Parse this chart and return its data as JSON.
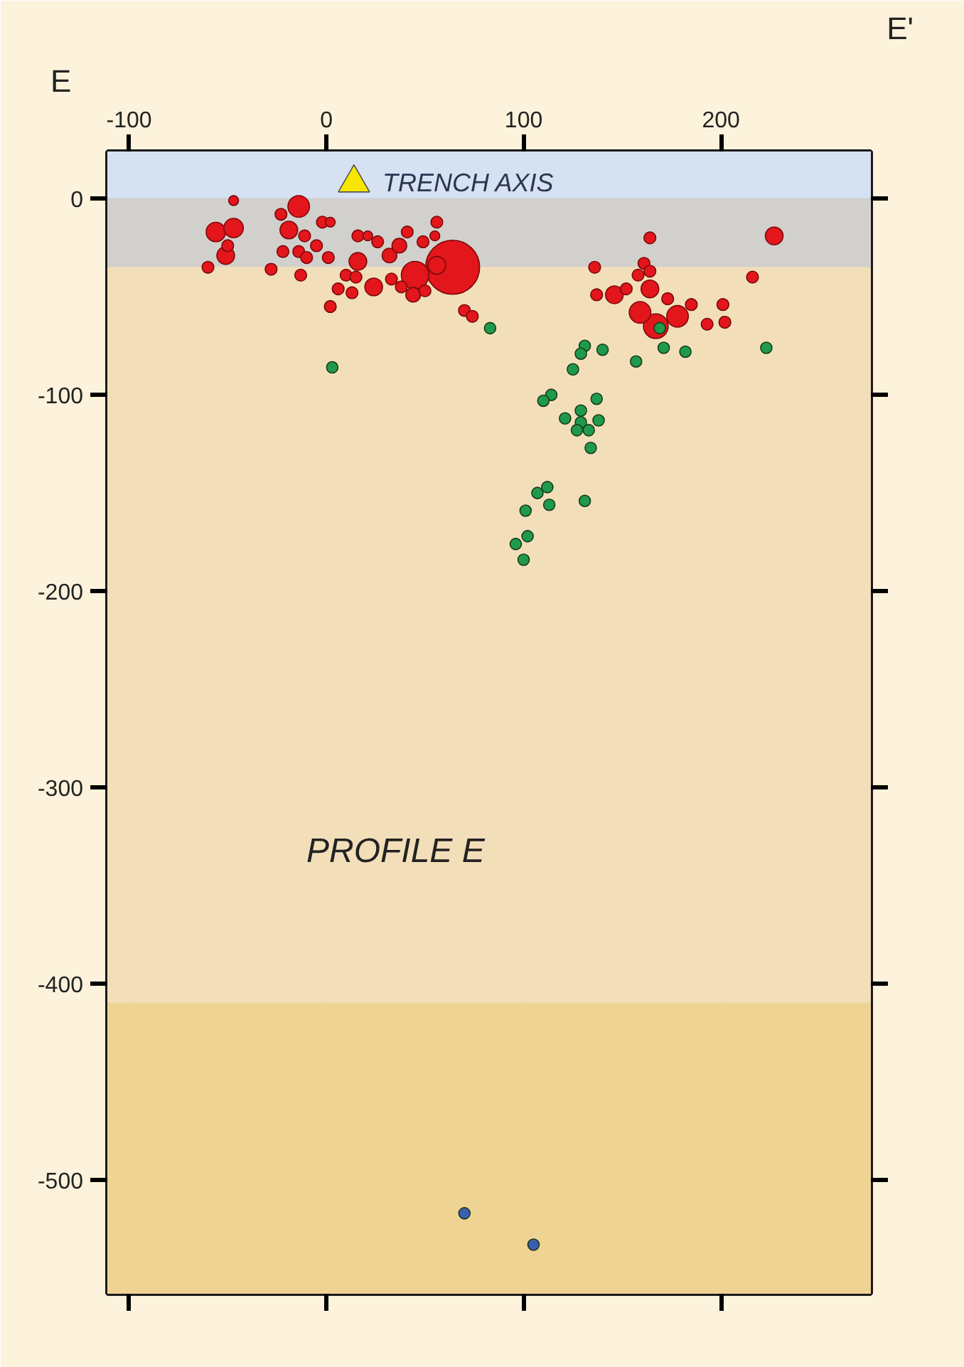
{
  "chart_data": {
    "type": "bubble",
    "xlim": [
      -111,
      276
    ],
    "ylim": [
      -558,
      24
    ],
    "xticks": [
      -100,
      0,
      100,
      200
    ],
    "yticks": [
      -500,
      -400,
      -300,
      -200,
      -100,
      0
    ],
    "grid": true,
    "annotations": [
      "E",
      "E'",
      {
        "text": "TRENCH AXIS",
        "x": 14,
        "y": 8
      },
      "PROFILE E"
    ],
    "bands": [
      {
        "axis": "y",
        "from": 0,
        "to": 24,
        "color": "#d6e1f2"
      },
      {
        "axis": "y",
        "from": -35,
        "to": 0,
        "color": "#d2d0cc"
      },
      {
        "axis": "y",
        "from": -410,
        "to": -35,
        "color": "#f2dfb9"
      },
      {
        "axis": "y",
        "from": -558,
        "to": -410,
        "color": "#efd393"
      }
    ],
    "series": [
      {
        "color": "#e3161b",
        "x": [
          -47,
          -56,
          -47,
          -51,
          -50,
          -60,
          -14,
          -23,
          -19,
          -11,
          -22,
          -14,
          -10,
          -5,
          -28,
          -13,
          -2,
          2,
          1,
          2,
          16,
          21,
          26,
          16,
          10,
          15,
          6,
          13,
          24,
          33,
          32,
          37,
          41,
          49,
          56,
          55,
          45,
          44,
          50,
          38,
          56,
          64,
          70,
          74,
          164,
          227,
          136,
          216,
          161,
          164,
          158,
          137,
          146,
          152,
          164,
          159,
          167,
          178,
          173,
          185,
          193,
          201,
          202
        ],
        "values": [
          -1,
          -17,
          -15,
          -29,
          -24,
          -35,
          -4,
          -8,
          -16,
          -19,
          -27,
          -27,
          -30,
          -24,
          -36,
          -39,
          -12,
          -12,
          -30,
          -55,
          -19,
          -19,
          -22,
          -32,
          -39,
          -40,
          -46,
          -48,
          -45,
          -41,
          -29,
          -24,
          -17,
          -22,
          -12,
          -19,
          -39,
          -49,
          -47,
          -45,
          -34,
          -35,
          -57,
          -60,
          -20,
          -19,
          -35,
          -40,
          -33,
          -37,
          -39,
          -49,
          -49,
          -46,
          -46,
          -58,
          -65,
          -60,
          -51,
          -54,
          -64,
          -54,
          -63
        ],
        "sizes": [
          0.033,
          0.13,
          0.13,
          0.107,
          0.048,
          0.048,
          0.16,
          0.048,
          0.107,
          0.048,
          0.048,
          0.048,
          0.048,
          0.048,
          0.048,
          0.048,
          0.048,
          0.033,
          0.048,
          0.048,
          0.048,
          0.033,
          0.048,
          0.107,
          0.048,
          0.048,
          0.048,
          0.048,
          0.107,
          0.048,
          0.074,
          0.074,
          0.048,
          0.048,
          0.048,
          0.033,
          0.26,
          0.074,
          0.048,
          0.048,
          0.107,
          1,
          0.048,
          0.048,
          0.048,
          0.107,
          0.048,
          0.048,
          0.048,
          0.048,
          0.048,
          0.048,
          0.107,
          0.048,
          0.107,
          0.16,
          0.21,
          0.16,
          0.048,
          0.048,
          0.048,
          0.048,
          0.048
        ]
      },
      {
        "type": "scatter",
        "color": "#1f9a4c",
        "marker": "circle",
        "x": [
          83,
          3,
          169,
          131,
          129,
          140,
          171,
          182,
          223,
          157,
          125,
          114,
          110,
          137,
          129,
          121,
          129,
          138,
          127,
          133,
          134,
          112,
          107,
          113,
          131,
          101,
          102,
          96,
          100
        ],
        "values": [
          -66,
          -86,
          -66,
          -75,
          -79,
          -77,
          -76,
          -78,
          -76,
          -83,
          -87,
          -100,
          -103,
          -102,
          -108,
          -112,
          -114,
          -113,
          -118,
          -118,
          -127,
          -147,
          -150,
          -156,
          -154,
          -159,
          -172,
          -176,
          -184
        ]
      },
      {
        "type": "scatter",
        "color": "#3b5fb0",
        "marker": "circle",
        "x": [
          70,
          105
        ],
        "values": [
          -517,
          -533
        ]
      },
      {
        "type": "scatter",
        "color": "#f7e600",
        "marker": "triangle",
        "x": [
          14
        ],
        "values": [
          8
        ]
      }
    ]
  }
}
